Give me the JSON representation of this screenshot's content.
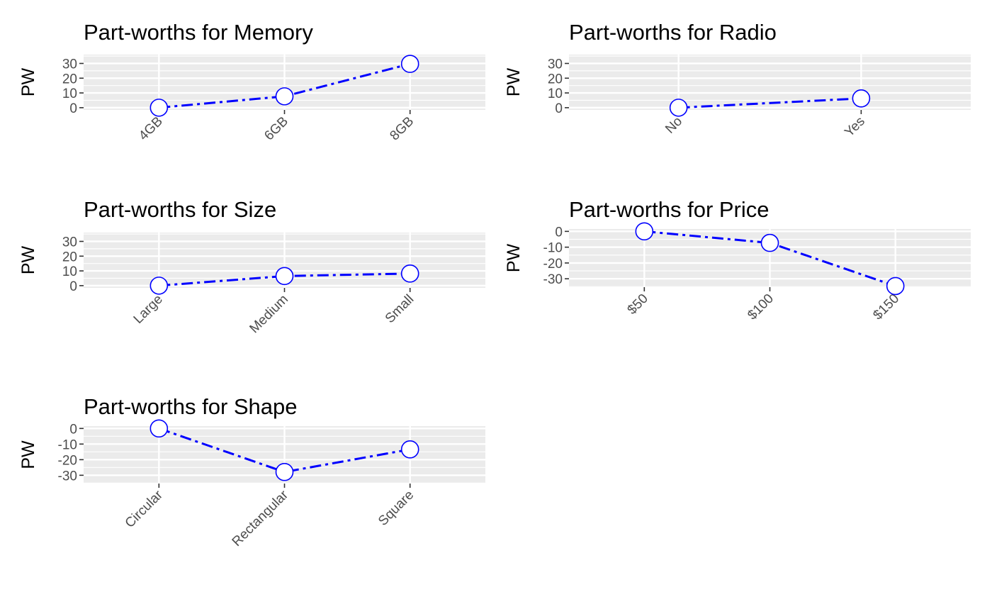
{
  "chart_data": [
    {
      "type": "line",
      "title": "Part-worths for Memory",
      "xlabel": "",
      "ylabel": "PW",
      "categories": [
        "4GB",
        "6GB",
        "8GB"
      ],
      "values": [
        0,
        7.7,
        29.7
      ],
      "ylim": [
        -1.5,
        36
      ],
      "yticks": [
        0,
        10,
        20,
        30
      ],
      "ytick_labels": [
        "0",
        "10",
        "20",
        "30"
      ],
      "grid": true,
      "line_color": "#0000ff",
      "line_style": "dotdash",
      "marker_fill": "#ffffff",
      "marker_edge": "#0000ff",
      "panel_bg": "#ebebeb"
    },
    {
      "type": "line",
      "title": "Part-worths for Radio",
      "xlabel": "",
      "ylabel": "PW",
      "categories": [
        "No",
        "Yes"
      ],
      "values": [
        0,
        6.3
      ],
      "ylim": [
        -1.5,
        36
      ],
      "yticks": [
        0,
        10,
        20,
        30
      ],
      "ytick_labels": [
        "0",
        "10",
        "20",
        "30"
      ],
      "grid": true,
      "line_color": "#0000ff",
      "line_style": "dotdash",
      "marker_fill": "#ffffff",
      "marker_edge": "#0000ff",
      "panel_bg": "#ebebeb"
    },
    {
      "type": "line",
      "title": "Part-worths for Size",
      "xlabel": "",
      "ylabel": "PW",
      "categories": [
        "Large",
        "Medium",
        "Small"
      ],
      "values": [
        0,
        6.5,
        8.2
      ],
      "ylim": [
        -1.5,
        36
      ],
      "yticks": [
        0,
        10,
        20,
        30
      ],
      "ytick_labels": [
        "0",
        "10",
        "20",
        "30"
      ],
      "grid": true,
      "line_color": "#0000ff",
      "line_style": "dotdash",
      "marker_fill": "#ffffff",
      "marker_edge": "#0000ff",
      "panel_bg": "#ebebeb"
    },
    {
      "type": "line",
      "title": "Part-worths for Price",
      "xlabel": "",
      "ylabel": "PW",
      "categories": [
        "$50",
        "$100",
        "$150"
      ],
      "values": [
        0,
        -7.3,
        -34.6
      ],
      "ylim": [
        -35.3,
        1.5
      ],
      "yticks": [
        0,
        -10,
        -20,
        -30
      ],
      "ytick_labels": [
        "0",
        "-10",
        "-20",
        "-30"
      ],
      "grid": true,
      "line_color": "#0000ff",
      "line_style": "dotdash",
      "marker_fill": "#ffffff",
      "marker_edge": "#0000ff",
      "panel_bg": "#ebebeb"
    },
    {
      "type": "line",
      "title": "Part-worths for Shape",
      "xlabel": "",
      "ylabel": "PW",
      "categories": [
        "Circular",
        "Rectangular",
        "Square"
      ],
      "values": [
        0,
        -27.9,
        -13.4
      ],
      "ylim": [
        -35.3,
        1.5
      ],
      "yticks": [
        0,
        -10,
        -20,
        -30
      ],
      "ytick_labels": [
        "0",
        "-10",
        "-20",
        "-30"
      ],
      "grid": true,
      "line_color": "#0000ff",
      "line_style": "dotdash",
      "marker_fill": "#ffffff",
      "marker_edge": "#0000ff",
      "panel_bg": "#ebebeb"
    }
  ]
}
